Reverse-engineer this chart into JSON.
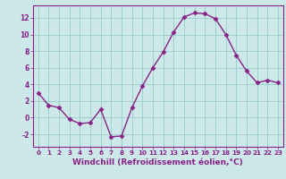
{
  "x": [
    0,
    1,
    2,
    3,
    4,
    5,
    6,
    7,
    8,
    9,
    10,
    11,
    12,
    13,
    14,
    15,
    16,
    17,
    18,
    19,
    20,
    21,
    22,
    23
  ],
  "y": [
    3,
    1.5,
    1.2,
    -0.2,
    -0.7,
    -0.6,
    1.0,
    -2.3,
    -2.2,
    1.2,
    3.8,
    6.0,
    7.9,
    10.3,
    12.1,
    12.6,
    12.5,
    11.9,
    10.0,
    7.5,
    5.6,
    4.2,
    4.5,
    4.2
  ],
  "line_color": "#882288",
  "marker": "D",
  "marker_size": 2.5,
  "linewidth": 1.0,
  "xlabel": "Windchill (Refroidissement éolien,°C)",
  "xlabel_fontsize": 6.5,
  "xlim": [
    -0.5,
    23.5
  ],
  "ylim": [
    -3.5,
    13.5
  ],
  "yticks": [
    -2,
    0,
    2,
    4,
    6,
    8,
    10,
    12
  ],
  "xticks": [
    0,
    1,
    2,
    3,
    4,
    5,
    6,
    7,
    8,
    9,
    10,
    11,
    12,
    13,
    14,
    15,
    16,
    17,
    18,
    19,
    20,
    21,
    22,
    23
  ],
  "bg_color": "#cce8e8",
  "grid_color": "#99cccc",
  "label_color": "#882288",
  "spine_color": "#882288"
}
